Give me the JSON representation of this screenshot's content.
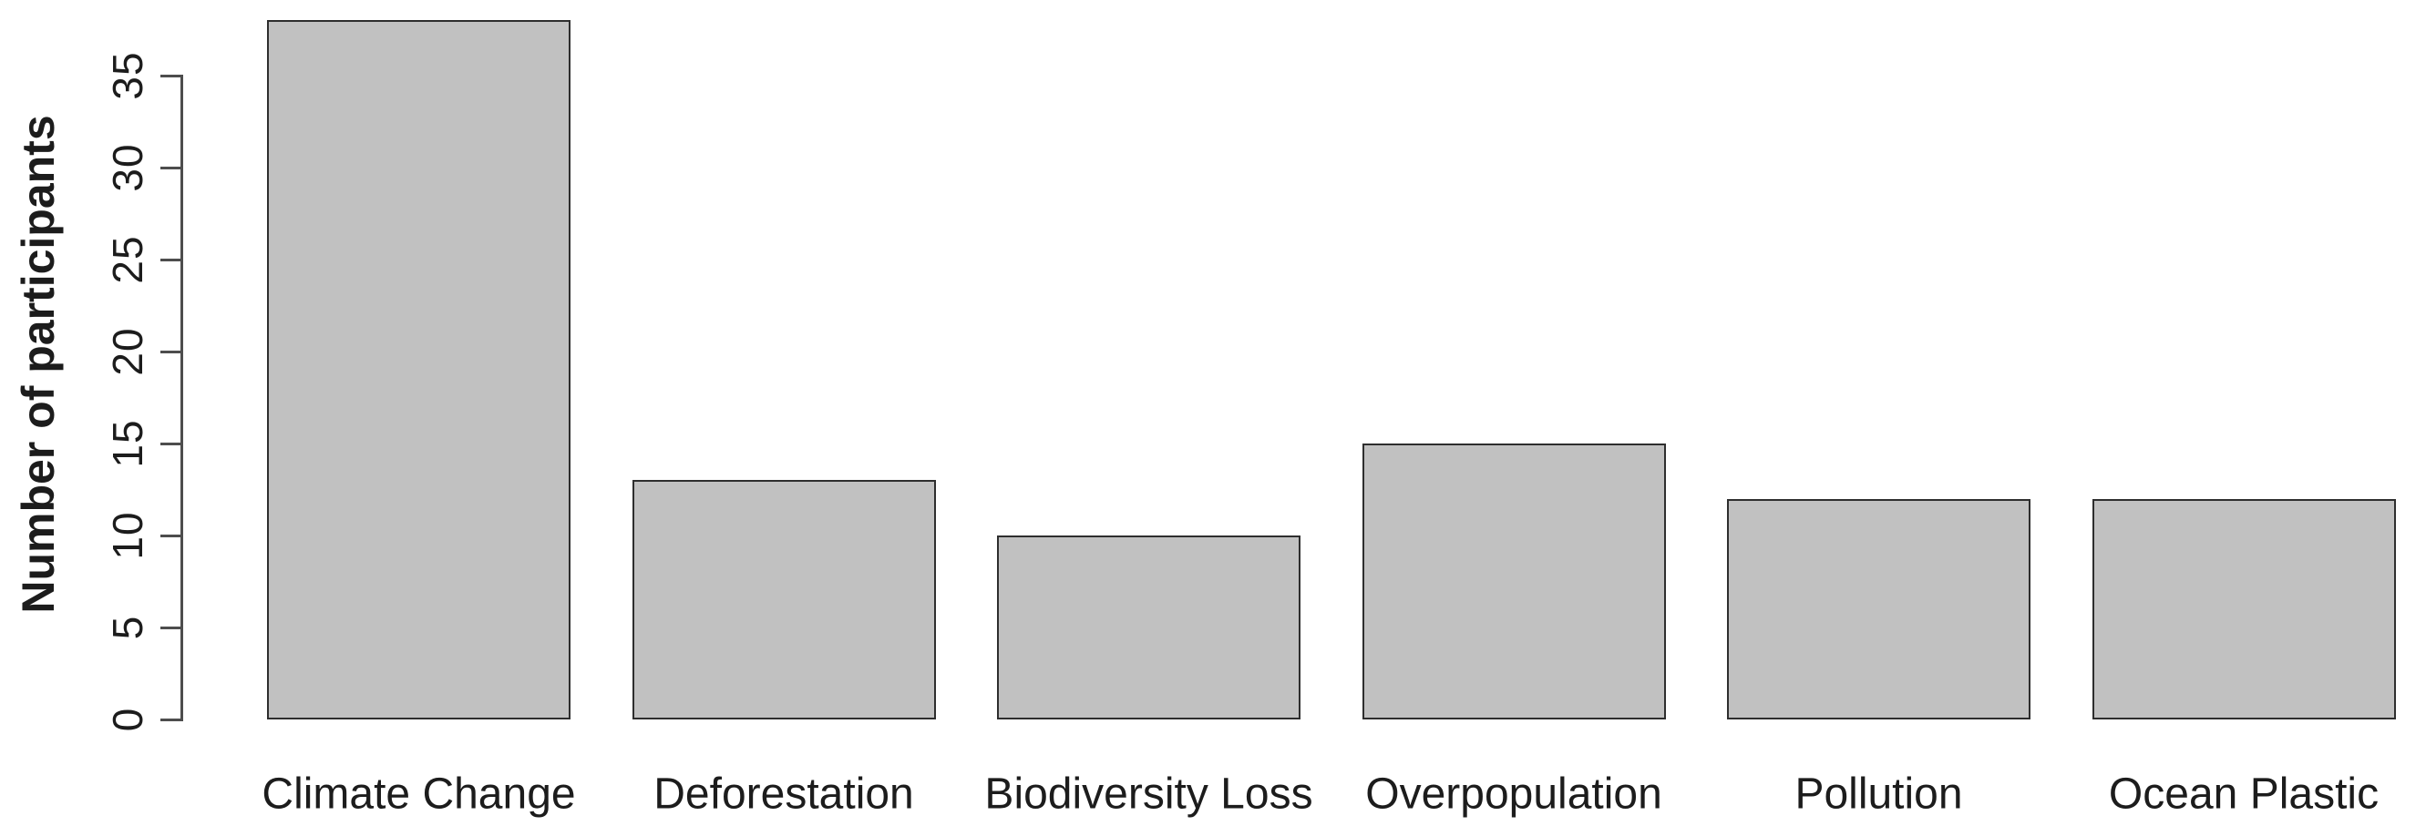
{
  "chart_data": {
    "type": "bar",
    "categories": [
      "Climate Change",
      "Deforestation",
      "Biodiversity Loss",
      "Overpopulation",
      "Pollution",
      "Ocean Plastic"
    ],
    "values": [
      38,
      13,
      10,
      15,
      12,
      12
    ],
    "title": "",
    "xlabel": "",
    "ylabel": "Number of participants",
    "ylim": [
      0,
      38
    ],
    "yticks": [
      0,
      5,
      10,
      15,
      20,
      25,
      30,
      35
    ],
    "grid": false,
    "legend": "none",
    "colors": {
      "bar_fill": "#c1c1c1",
      "bar_border": "#2e2e2e",
      "axis": "#4d4d4d",
      "text": "#1c1c1c",
      "background": "#ffffff"
    }
  }
}
